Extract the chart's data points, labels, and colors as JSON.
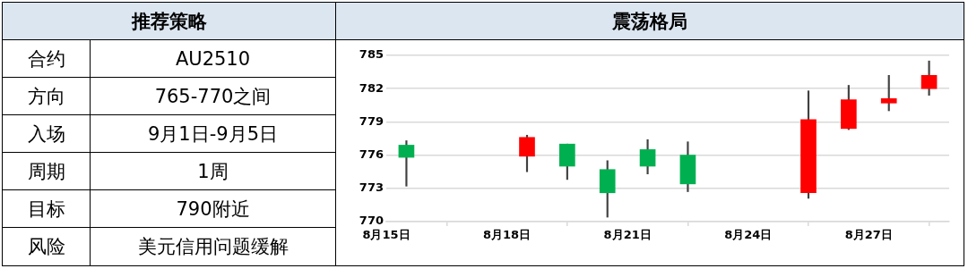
{
  "chart_data": [
    {
      "type": "other",
      "title": "推荐策略",
      "annotations": [
        "合约",
        "AU2510",
        "方向",
        "765-770之间",
        "入场",
        "9月1日-9月5日",
        "周期",
        "1周",
        "目标",
        "790附近",
        "风险",
        "美元信用问题缓解"
      ]
    },
    {
      "type": "candlestick",
      "title": "震荡格局",
      "x": [
        "--08-15T12:00",
        "--08-18T12:00",
        "--08-19T12:00",
        "--08-20T12:00",
        "--08-21T12:00",
        "--08-22T12:00",
        "--08-25T12:00",
        "--08-26T12:00",
        "--08-27T12:00",
        "--08-28T12:00"
      ],
      "ohlc": [
        [
          776.9,
          777.3,
          773.2,
          775.8
        ],
        [
          775.9,
          777.8,
          774.5,
          777.6
        ],
        [
          777.0,
          777.0,
          773.8,
          775.0
        ],
        [
          774.7,
          775.5,
          770.4,
          772.6
        ],
        [
          776.5,
          777.4,
          774.3,
          775.0
        ],
        [
          776.0,
          777.2,
          772.7,
          773.4
        ],
        [
          772.6,
          781.8,
          772.1,
          779.2
        ],
        [
          778.4,
          782.3,
          778.3,
          781.0
        ],
        [
          780.7,
          783.2,
          780.0,
          781.1
        ],
        [
          782.0,
          784.5,
          781.4,
          783.2
        ]
      ],
      "colors": [
        "#00b050",
        "#ff0000",
        "#00b050",
        "#00b050",
        "#00b050",
        "#00b050",
        "#ff0000",
        "#ff0000",
        "#ff0000",
        "#ff0000"
      ],
      "xlim": [
        "--08-15",
        "--08-29"
      ],
      "xticks": [
        {
          "value": "--08-15",
          "label": "8月15日"
        },
        {
          "value": "--08-18",
          "label": "8月18日"
        },
        {
          "value": "--08-21",
          "label": "8月21日"
        },
        {
          "value": "--08-24",
          "label": "8月24日"
        },
        {
          "value": "--08-27",
          "label": "8月27日"
        }
      ],
      "ylim": [
        770,
        785
      ],
      "yticks": [
        770,
        773,
        776,
        779,
        782,
        785
      ],
      "grid": "y",
      "legend": false
    }
  ]
}
